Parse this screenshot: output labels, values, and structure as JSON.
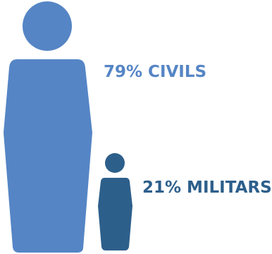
{
  "chart_data": {
    "type": "pictograph",
    "title": "",
    "series": [
      {
        "name": "CIVILS",
        "value": 79,
        "label": "79% CIVILS",
        "color": "#5585c5"
      },
      {
        "name": "MILITARS",
        "value": 21,
        "label": "21% MILITARS",
        "color": "#2d5f8b"
      }
    ],
    "unit": "%"
  }
}
